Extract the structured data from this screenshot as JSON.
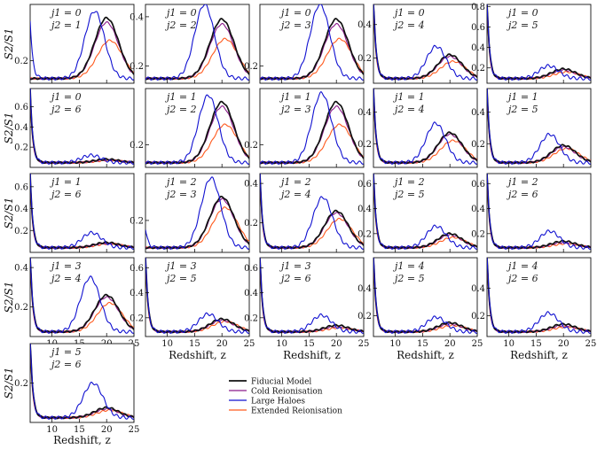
{
  "chart_data": {
    "type": "line",
    "ylabel": "S2/S1",
    "xlabel": "Redshift, z",
    "xlim": [
      6,
      25
    ],
    "xticks": [
      "10",
      "15",
      "20",
      "25"
    ],
    "legend": {
      "placement": "bottom-center",
      "entries": [
        {
          "name": "Fiducial Model",
          "color": "#111111"
        },
        {
          "name": "Cold Reionisation",
          "color": "#8b1a8b"
        },
        {
          "name": "Large Haloes",
          "color": "#1010d0"
        },
        {
          "name": "Extended Reionisation",
          "color": "#ff5a1e"
        }
      ]
    },
    "panels": [
      {
        "j1": "j1 = 0",
        "j2": "j2 = 1",
        "ylim": [
          0.1,
          0.45
        ],
        "yticks": [
          {
            "v": 0.2,
            "t": "0.2"
          }
        ],
        "peak": 0.39,
        "cold": 0.37,
        "large": 0.42,
        "ext": 0.29,
        "lpeak": 17.8,
        "earlyLarge": 0.26,
        "spike": 0.0
      },
      {
        "j1": "j1 = 0",
        "j2": "j2 = 2",
        "ylim": [
          0.13,
          0.45
        ],
        "yticks": [
          {
            "v": 0.2,
            "t": "0.2"
          },
          {
            "v": 0.4,
            "t": "0.4"
          }
        ],
        "peak": 0.39,
        "cold": 0.37,
        "large": 0.45,
        "ext": 0.31,
        "lpeak": 16.8,
        "earlyLarge": 0.0,
        "spike": 0.0
      },
      {
        "j1": "j1 = 0",
        "j2": "j2 = 3",
        "ylim": [
          0.13,
          0.45
        ],
        "yticks": [
          {
            "v": 0.2,
            "t": "0.2"
          }
        ],
        "peak": 0.39,
        "cold": 0.37,
        "large": 0.45,
        "ext": 0.31,
        "lpeak": 17.0,
        "earlyLarge": 0.0,
        "spike": 0.0
      },
      {
        "j1": "j1 = 0",
        "j2": "j2 = 4",
        "ylim": [
          0.05,
          0.52
        ],
        "yticks": [
          {
            "v": 0.2,
            "t": "0.2"
          },
          {
            "v": 0.4,
            "t": "0.4"
          }
        ],
        "peak": 0.22,
        "cold": 0.21,
        "large": 0.27,
        "ext": 0.18,
        "lpeak": 17.5,
        "earlyLarge": 0.5,
        "spike": 0.5
      },
      {
        "j1": "j1 = 0",
        "j2": "j2 = 5",
        "ylim": [
          0.05,
          0.82
        ],
        "yticks": [
          {
            "v": 0.2,
            "t": "0.2"
          },
          {
            "v": 0.4,
            "t": "0.4"
          },
          {
            "v": 0.6,
            "t": "0.6"
          },
          {
            "v": 0.8,
            "t": "0.8"
          }
        ],
        "peak": 0.19,
        "cold": 0.18,
        "large": 0.22,
        "ext": 0.16,
        "lpeak": 17.3,
        "earlyLarge": 0.8,
        "spike": 0.8
      },
      {
        "j1": "j1 = 0",
        "j2": "j2 = 6",
        "ylim": [
          0.0,
          0.78
        ],
        "yticks": [
          {
            "v": 0.2,
            "t": "0.2"
          },
          {
            "v": 0.4,
            "t": "0.4"
          },
          {
            "v": 0.6,
            "t": "0.6"
          }
        ],
        "peak": 0.08,
        "cold": 0.075,
        "large": 0.12,
        "ext": 0.07,
        "lpeak": 17.2,
        "earlyLarge": 0.75,
        "spike": 0.75
      },
      {
        "j1": "j1 = 1",
        "j2": "j2 = 2",
        "ylim": [
          0.1,
          0.45
        ],
        "yticks": [
          {
            "v": 0.2,
            "t": "0.2"
          }
        ],
        "peak": 0.39,
        "cold": 0.37,
        "large": 0.42,
        "ext": 0.29,
        "lpeak": 17.5,
        "earlyLarge": 0.0,
        "spike": 0.0
      },
      {
        "j1": "j1 = 1",
        "j2": "j2 = 3",
        "ylim": [
          0.1,
          0.45
        ],
        "yticks": [
          {
            "v": 0.2,
            "t": "0.2"
          }
        ],
        "peak": 0.39,
        "cold": 0.37,
        "large": 0.43,
        "ext": 0.29,
        "lpeak": 17.3,
        "earlyLarge": 0.0,
        "spike": 0.0
      },
      {
        "j1": "j1 = 1",
        "j2": "j2 = 4",
        "ylim": [
          0.05,
          0.55
        ],
        "yticks": [
          {
            "v": 0.2,
            "t": "0.2"
          },
          {
            "v": 0.4,
            "t": "0.4"
          }
        ],
        "peak": 0.27,
        "cold": 0.26,
        "large": 0.33,
        "ext": 0.22,
        "lpeak": 17.4,
        "earlyLarge": 0.5,
        "spike": 0.5
      },
      {
        "j1": "j1 = 1",
        "j2": "j2 = 5",
        "ylim": [
          0.05,
          0.55
        ],
        "yticks": [
          {
            "v": 0.2,
            "t": "0.2"
          },
          {
            "v": 0.4,
            "t": "0.4"
          }
        ],
        "peak": 0.19,
        "cold": 0.18,
        "large": 0.26,
        "ext": 0.17,
        "lpeak": 17.5,
        "earlyLarge": 0.5,
        "spike": 0.5
      },
      {
        "j1": "j1 = 1",
        "j2": "j2 = 6",
        "ylim": [
          0.0,
          0.72
        ],
        "yticks": [
          {
            "v": 0.2,
            "t": "0.2"
          },
          {
            "v": 0.4,
            "t": "0.4"
          },
          {
            "v": 0.6,
            "t": "0.6"
          }
        ],
        "peak": 0.09,
        "cold": 0.085,
        "large": 0.18,
        "ext": 0.08,
        "lpeak": 17.3,
        "earlyLarge": 0.7,
        "spike": 0.7
      },
      {
        "j1": "j1 = 2",
        "j2": "j2 = 3",
        "ylim": [
          0.05,
          0.42
        ],
        "yticks": [
          {
            "v": 0.2,
            "t": "0.2"
          }
        ],
        "peak": 0.31,
        "cold": 0.3,
        "large": 0.4,
        "ext": 0.26,
        "lpeak": 18.0,
        "earlyLarge": 0.09,
        "spike": 0.0
      },
      {
        "j1": "j1 = 2",
        "j2": "j2 = 4",
        "ylim": [
          0.05,
          0.45
        ],
        "yticks": [
          {
            "v": 0.2,
            "t": "0.2"
          },
          {
            "v": 0.4,
            "t": "0.4"
          }
        ],
        "peak": 0.26,
        "cold": 0.25,
        "large": 0.33,
        "ext": 0.22,
        "lpeak": 17.5,
        "earlyLarge": 0.4,
        "spike": 0.4
      },
      {
        "j1": "j1 = 2",
        "j2": "j2 = 5",
        "ylim": [
          0.05,
          0.68
        ],
        "yticks": [
          {
            "v": 0.2,
            "t": "0.2"
          },
          {
            "v": 0.4,
            "t": "0.4"
          },
          {
            "v": 0.6,
            "t": "0.6"
          }
        ],
        "peak": 0.2,
        "cold": 0.19,
        "large": 0.26,
        "ext": 0.17,
        "lpeak": 17.5,
        "earlyLarge": 0.65,
        "spike": 0.65
      },
      {
        "j1": "j1 = 2",
        "j2": "j2 = 6",
        "ylim": [
          0.05,
          0.68
        ],
        "yticks": [
          {
            "v": 0.2,
            "t": "0.2"
          },
          {
            "v": 0.4,
            "t": "0.4"
          },
          {
            "v": 0.6,
            "t": "0.6"
          }
        ],
        "peak": 0.14,
        "cold": 0.13,
        "large": 0.22,
        "ext": 0.12,
        "lpeak": 17.5,
        "earlyLarge": 0.65,
        "spike": 0.65
      },
      {
        "j1": "j1 = 3",
        "j2": "j2 = 4",
        "ylim": [
          0.05,
          0.45
        ],
        "yticks": [
          {
            "v": 0.2,
            "t": "0.2"
          },
          {
            "v": 0.4,
            "t": "0.4"
          }
        ],
        "peak": 0.26,
        "cold": 0.25,
        "large": 0.35,
        "ext": 0.22,
        "lpeak": 17.0,
        "earlyLarge": 0.42,
        "spike": 0.42
      },
      {
        "j1": "j1 = 3",
        "j2": "j2 = 5",
        "ylim": [
          0.05,
          0.68
        ],
        "yticks": [
          {
            "v": 0.2,
            "t": "0.2"
          },
          {
            "v": 0.4,
            "t": "0.4"
          },
          {
            "v": 0.6,
            "t": "0.6"
          }
        ],
        "peak": 0.19,
        "cold": 0.18,
        "large": 0.23,
        "ext": 0.17,
        "lpeak": 17.5,
        "earlyLarge": 0.65,
        "spike": 0.65
      },
      {
        "j1": "j1 = 3",
        "j2": "j2 = 6",
        "ylim": [
          0.05,
          0.68
        ],
        "yticks": [
          {
            "v": 0.2,
            "t": "0.2"
          },
          {
            "v": 0.4,
            "t": "0.4"
          },
          {
            "v": 0.6,
            "t": "0.6"
          }
        ],
        "peak": 0.14,
        "cold": 0.13,
        "large": 0.22,
        "ext": 0.12,
        "lpeak": 17.3,
        "earlyLarge": 0.65,
        "spike": 0.65
      },
      {
        "j1": "j1 = 4",
        "j2": "j2 = 5",
        "ylim": [
          0.05,
          0.62
        ],
        "yticks": [
          {
            "v": 0.2,
            "t": "0.2"
          },
          {
            "v": 0.4,
            "t": "0.4"
          }
        ],
        "peak": 0.15,
        "cold": 0.14,
        "large": 0.19,
        "ext": 0.13,
        "lpeak": 17.5,
        "earlyLarge": 0.6,
        "spike": 0.6
      },
      {
        "j1": "j1 = 4",
        "j2": "j2 = 6",
        "ylim": [
          0.05,
          0.62
        ],
        "yticks": [
          {
            "v": 0.2,
            "t": "0.2"
          },
          {
            "v": 0.4,
            "t": "0.4"
          }
        ],
        "peak": 0.14,
        "cold": 0.13,
        "large": 0.22,
        "ext": 0.12,
        "lpeak": 17.3,
        "earlyLarge": 0.6,
        "spike": 0.6
      },
      {
        "j1": "j1 = 5",
        "j2": "j2 = 6",
        "ylim": [
          0.04,
          0.36
        ],
        "yticks": [
          {
            "v": 0.2,
            "t": "0.2"
          }
        ],
        "peak": 0.1,
        "cold": 0.095,
        "large": 0.2,
        "ext": 0.09,
        "lpeak": 17.5,
        "earlyLarge": 0.34,
        "spike": 0.34
      }
    ]
  }
}
